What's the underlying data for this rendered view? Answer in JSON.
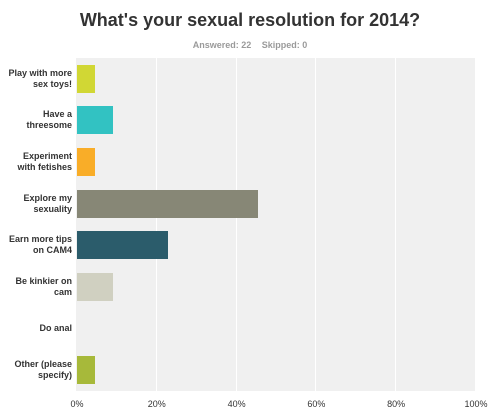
{
  "header": {
    "title": "What's your sexual resolution for 2014?",
    "answered": "Answered: 22",
    "skipped": "Skipped: 0"
  },
  "chart_data": {
    "type": "bar",
    "orientation": "horizontal",
    "categories": [
      "Play with more sex toys!",
      "Have a threesome",
      "Experiment with fetishes",
      "Explore my sexuality",
      "Earn more tips on CAM4",
      "Be kinkier on cam",
      "Do anal",
      "Other (please specify)"
    ],
    "values": [
      4.55,
      9.09,
      4.55,
      45.45,
      22.73,
      9.09,
      0,
      4.55
    ],
    "colors": [
      "#d1d734",
      "#32c2c2",
      "#f9ad28",
      "#878776",
      "#2b5c6b",
      "#d0d0c1",
      "#b5b5b5",
      "#a7b93a"
    ],
    "xlim": [
      0,
      100
    ],
    "xticks": [
      "0%",
      "20%",
      "40%",
      "60%",
      "80%",
      "100%"
    ],
    "grid": true
  }
}
